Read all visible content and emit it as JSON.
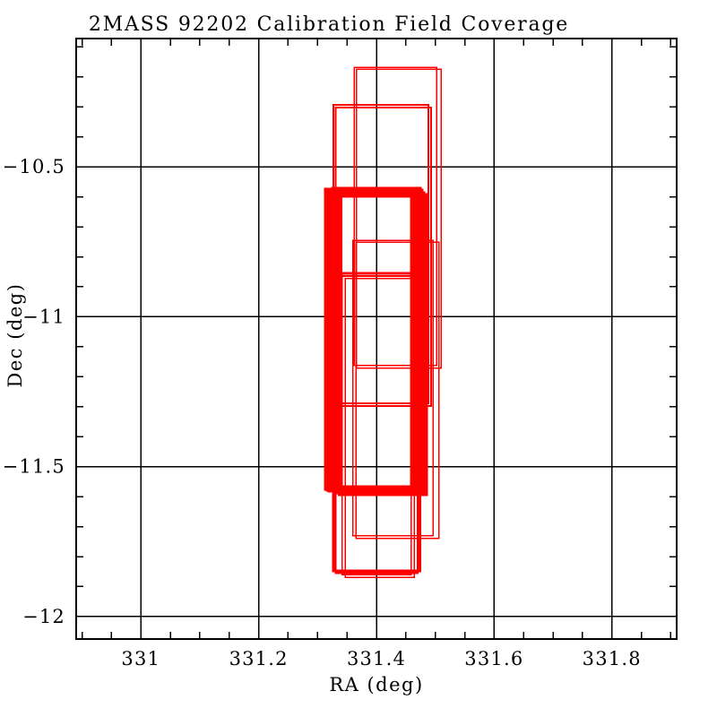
{
  "window": {
    "background": "#ffffff"
  },
  "chart_data": {
    "type": "coverage_footprints",
    "title": "2MASS 92202 Calibration Field Coverage",
    "xlabel": "RA (deg)",
    "ylabel": "Dec (deg)",
    "x_range": [
      330.89,
      331.91
    ],
    "y_range": [
      -12.075,
      -10.072
    ],
    "grid": true,
    "frame_color": "#000000",
    "grid_color": "#000000",
    "footprint_color": "#ff0000",
    "x_major_ticks": [
      331.0,
      331.2,
      331.4,
      331.6,
      331.8
    ],
    "x_tick_labels": [
      "331",
      "331.2",
      "331.4",
      "331.6",
      "331.8"
    ],
    "x_minor_step": 0.05,
    "y_major_ticks": [
      -10.5,
      -11.0,
      -11.5,
      -12.0
    ],
    "y_tick_labels": [
      "−10.5",
      "−11",
      "−11.5",
      "−12"
    ],
    "y_minor_step": 0.1,
    "rectangles": [
      {
        "ra_min": 331.362,
        "ra_max": 331.502,
        "dec_min": -11.163,
        "dec_max": -10.168,
        "lw": 1.5
      },
      {
        "ra_min": 331.366,
        "ra_max": 331.51,
        "dec_min": -11.172,
        "dec_max": -10.174,
        "lw": 1.5
      },
      {
        "ra_min": 331.36,
        "ra_max": 331.496,
        "dec_min": -11.731,
        "dec_max": -10.745,
        "lw": 1.5
      },
      {
        "ra_min": 331.365,
        "ra_max": 331.506,
        "dec_min": -11.74,
        "dec_max": -10.751,
        "lw": 1.5
      },
      {
        "ra_min": 331.342,
        "ra_max": 331.459,
        "dec_min": -11.86,
        "dec_max": -10.864,
        "lw": 1.5
      },
      {
        "ra_min": 331.347,
        "ra_max": 331.464,
        "dec_min": -11.869,
        "dec_max": -10.873,
        "lw": 1.5
      },
      {
        "ra_min": 331.327,
        "ra_max": 331.488,
        "dec_min": -11.289,
        "dec_max": -10.293,
        "lw": 2
      },
      {
        "ra_min": 331.331,
        "ra_max": 331.493,
        "dec_min": -11.298,
        "dec_max": -10.302,
        "lw": 2
      },
      {
        "ra_min": 331.327,
        "ra_max": 331.474,
        "dec_min": -11.848,
        "dec_max": -10.855,
        "lw": 3
      },
      {
        "ra_min": 331.331,
        "ra_max": 331.47,
        "dec_min": -11.856,
        "dec_max": -10.864,
        "lw": 2
      },
      {
        "ra_min": 331.315,
        "ra_max": 331.461,
        "dec_min": -11.573,
        "dec_max": -10.577,
        "lw": 5
      },
      {
        "ra_min": 331.321,
        "ra_max": 331.467,
        "dec_min": -11.579,
        "dec_max": -10.583,
        "lw": 5
      },
      {
        "ra_min": 331.327,
        "ra_max": 331.473,
        "dec_min": -11.57,
        "dec_max": -10.574,
        "lw": 5
      },
      {
        "ra_min": 331.333,
        "ra_max": 331.479,
        "dec_min": -11.585,
        "dec_max": -10.589,
        "lw": 5
      },
      {
        "ra_min": 331.338,
        "ra_max": 331.484,
        "dec_min": -11.591,
        "dec_max": -10.595,
        "lw": 5
      },
      {
        "ra_min": 331.318,
        "ra_max": 331.476,
        "dec_min": -11.576,
        "dec_max": -10.58,
        "lw": 5
      }
    ]
  }
}
